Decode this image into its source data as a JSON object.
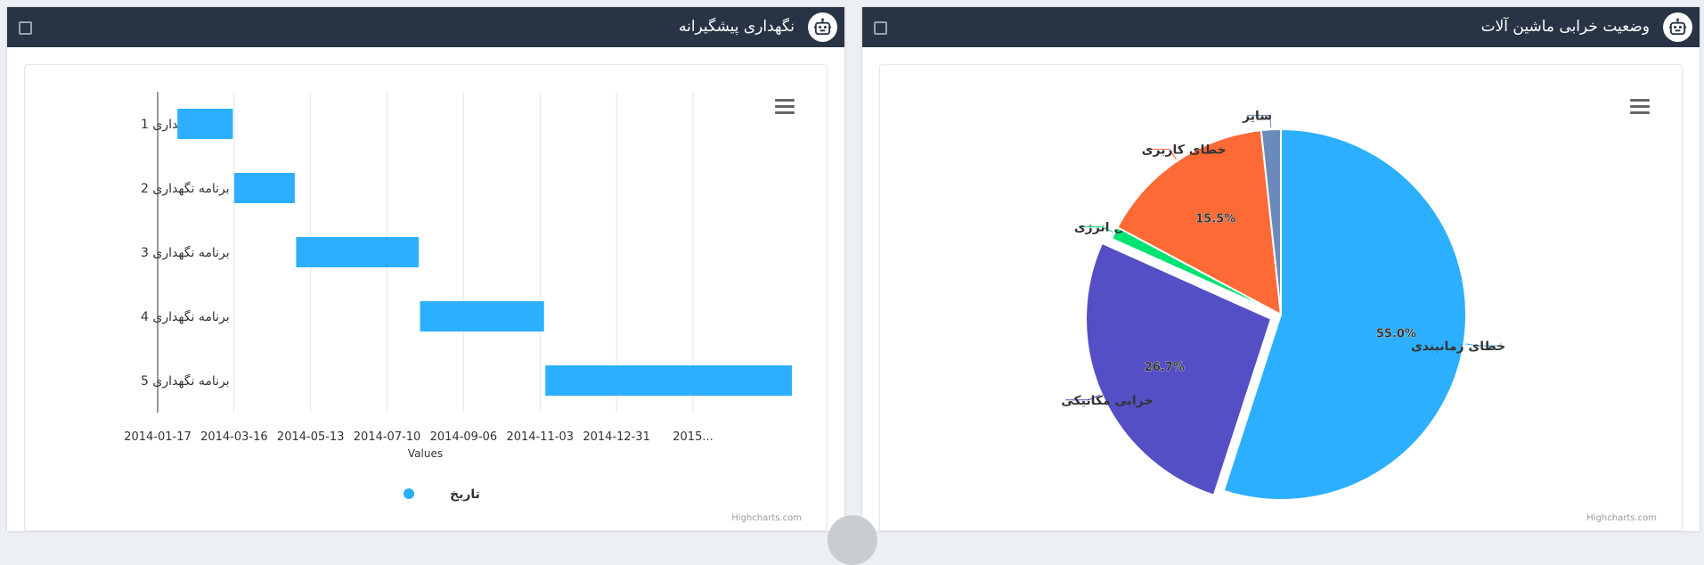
{
  "left_panel": {
    "title": "نگهداری پیشگیرانه",
    "chart_data": {
      "type": "bar",
      "orientation": "horizontal-gantt",
      "categories": [
        "برنامه نگهداری 1",
        "برنامه نگهداری 2",
        "برنامه نگهداری 3",
        "برنامه نگهداری 4",
        "برنامه نگهداری 5"
      ],
      "series": [
        {
          "name": "تاریخ",
          "color": "#2caffe",
          "values": [
            {
              "start": "2014-02-01",
              "end": "2014-03-15"
            },
            {
              "start": "2014-03-16",
              "end": "2014-05-01"
            },
            {
              "start": "2014-05-02",
              "end": "2014-08-03"
            },
            {
              "start": "2014-08-04",
              "end": "2014-11-06"
            },
            {
              "start": "2014-11-07",
              "end": "2015-05-13"
            }
          ]
        }
      ],
      "x_ticks": [
        "2014-01-17",
        "2014-03-16",
        "2014-05-13",
        "2014-07-10",
        "2014-09-06",
        "2014-11-03",
        "2014-12-31",
        "2015..."
      ],
      "xlabel": "Values",
      "xlim": [
        "2014-01-17",
        "2015-02-27"
      ],
      "grid": true,
      "legend": "bottom-center",
      "credits": "Highcharts.com"
    }
  },
  "right_panel": {
    "title": "وضعیت خرابی ماشین آلات",
    "chart_data": {
      "type": "pie",
      "slices": [
        {
          "label": "خطای زمانبندی",
          "value": 55.0,
          "color": "#2caffe",
          "percent_label": "55.0%"
        },
        {
          "label": "خرابی مکانیکی",
          "value": 26.7,
          "color": "#544fc5",
          "percent_label": "26.7%",
          "sliced": true
        },
        {
          "label": "مشکل انرژی",
          "value": 1.1,
          "color": "#00e272",
          "percent_label": ""
        },
        {
          "label": "خطای کاربری",
          "value": 15.5,
          "color": "#fe6a35",
          "percent_label": "15.5%"
        },
        {
          "label": "سایر",
          "value": 1.7,
          "color": "#6b8abc",
          "percent_label": ""
        }
      ],
      "credits": "Highcharts.com"
    }
  }
}
